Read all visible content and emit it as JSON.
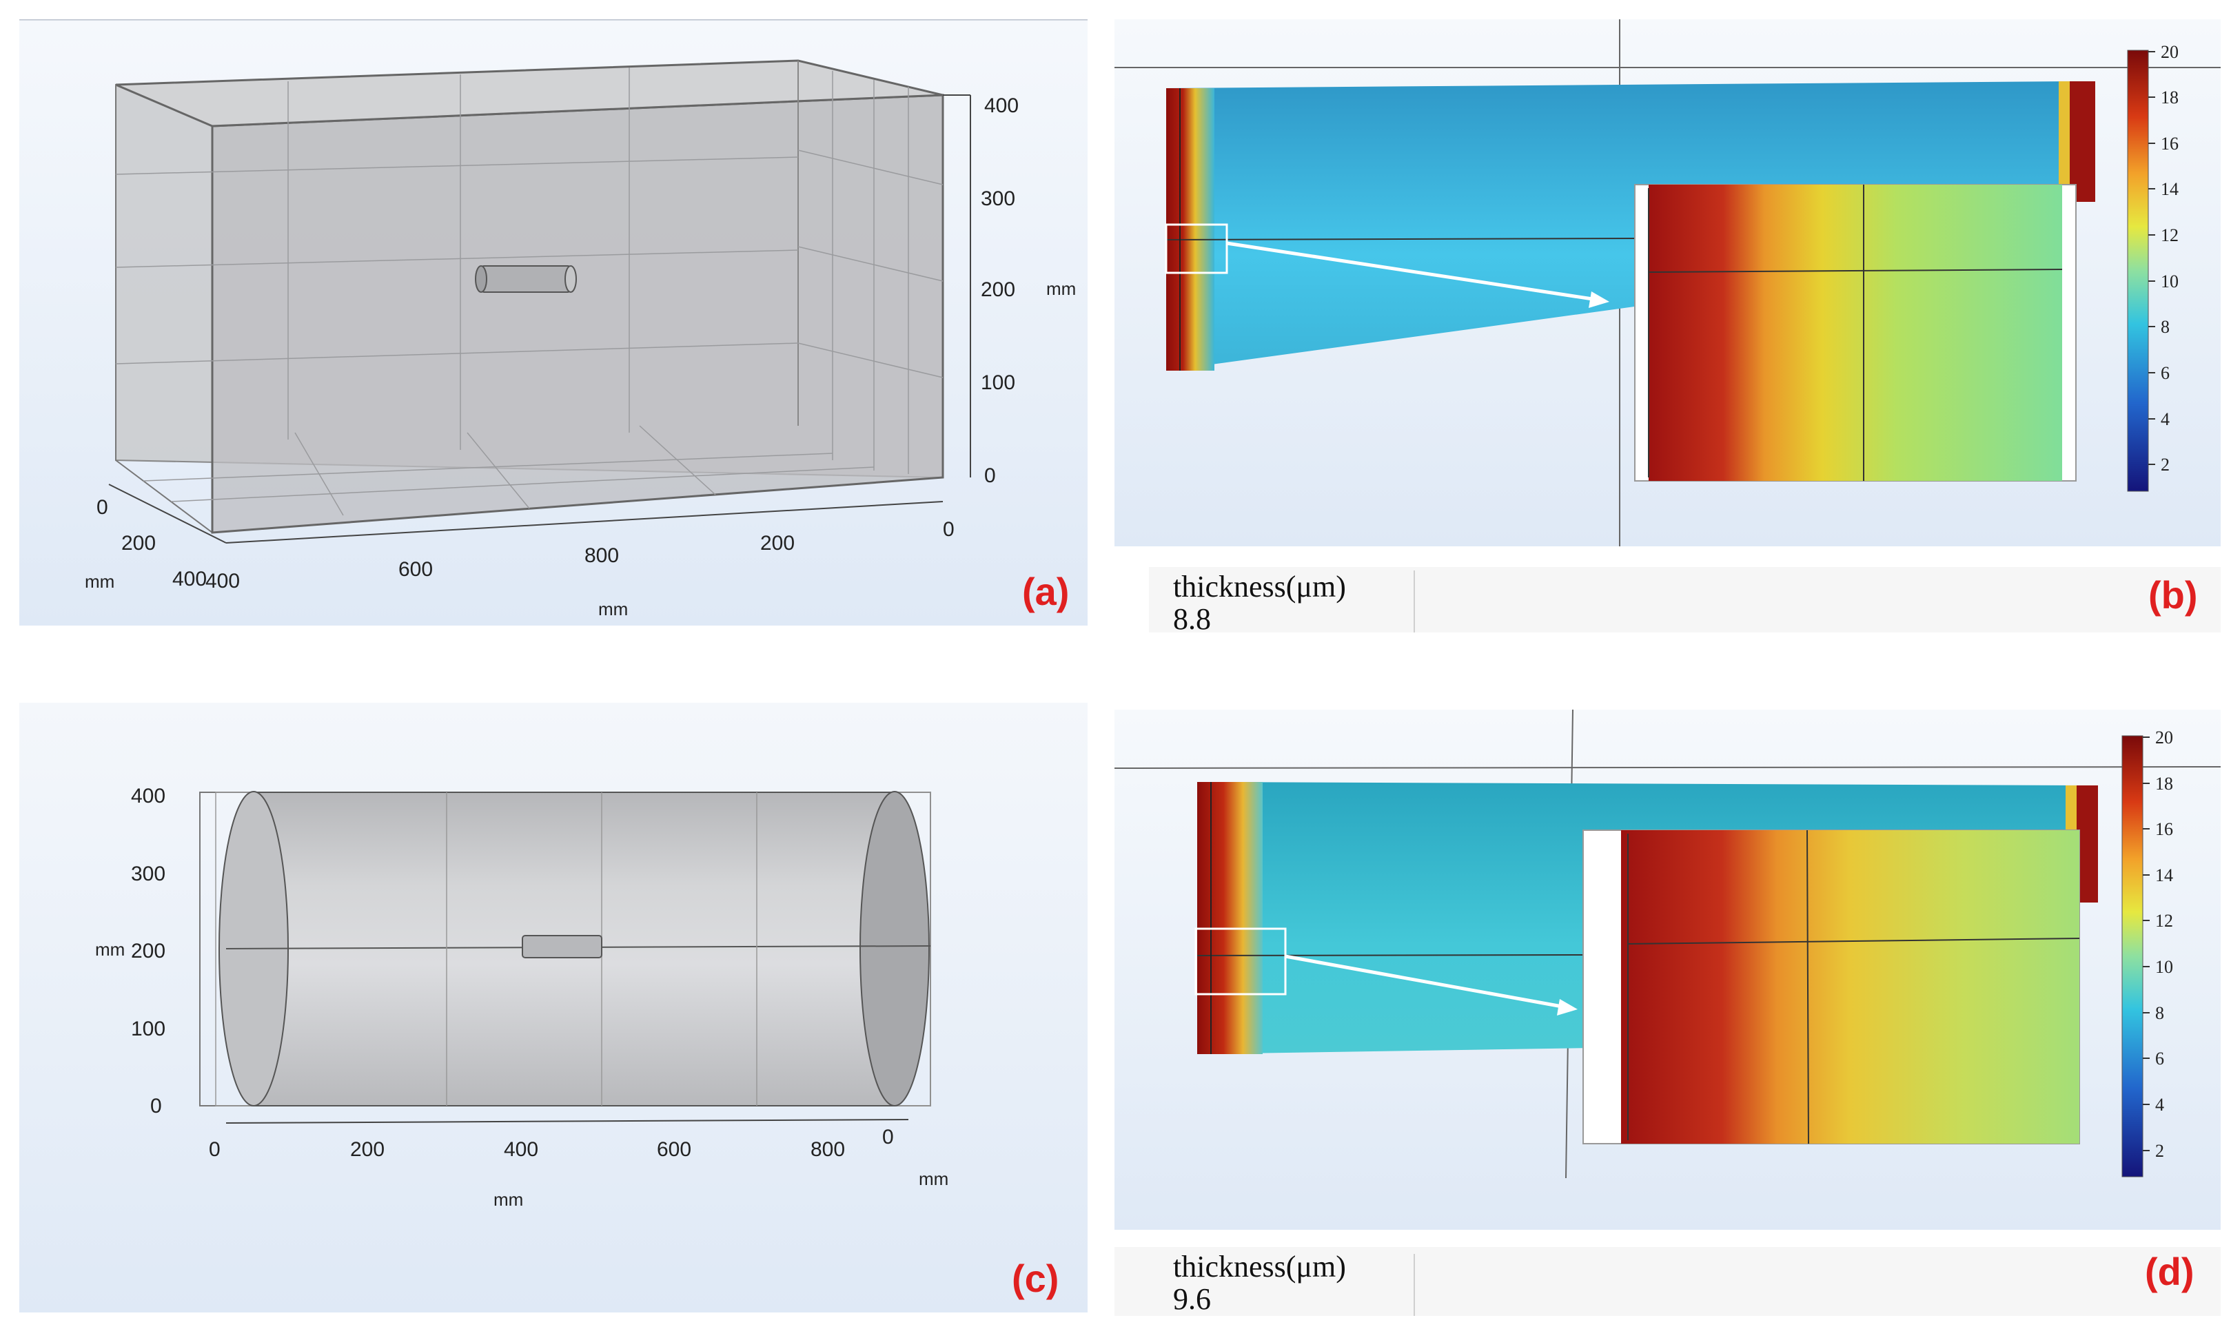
{
  "panel_a": {
    "label": "(a)",
    "z_ticks": [
      "0",
      "100",
      "200",
      "300",
      "400"
    ],
    "z_unit": "mm",
    "x_ticks": [
      "400",
      "600",
      "800",
      "0"
    ],
    "x_unit": "mm",
    "x_right_ticks": [
      "0",
      "200"
    ],
    "y_ticks": [
      "0",
      "200",
      "400"
    ],
    "y_unit": "mm"
  },
  "panel_b": {
    "label": "(b)",
    "colorbar_ticks": [
      "20",
      "18",
      "16",
      "14",
      "12",
      "10",
      "8",
      "6",
      "4",
      "2"
    ],
    "result_header": "thickness(μm)",
    "result_value": "8.8"
  },
  "panel_c": {
    "label": "(c)",
    "y_ticks": [
      "0",
      "100",
      "200",
      "300",
      "400"
    ],
    "y_unit": "mm",
    "x_ticks": [
      "0",
      "200",
      "400",
      "600",
      "800"
    ],
    "x_unit": "mm",
    "depth_tick": "0",
    "depth_unit": "mm"
  },
  "panel_d": {
    "label": "(d)",
    "colorbar_ticks": [
      "20",
      "18",
      "16",
      "14",
      "12",
      "10",
      "8",
      "6",
      "4",
      "2"
    ],
    "result_header": "thickness(μm)",
    "result_value": "9.6"
  },
  "colors": {
    "label_red": "#e02020",
    "viewport_bg": "#e9f0f9",
    "geometry_gray": "#c4c6c9"
  }
}
